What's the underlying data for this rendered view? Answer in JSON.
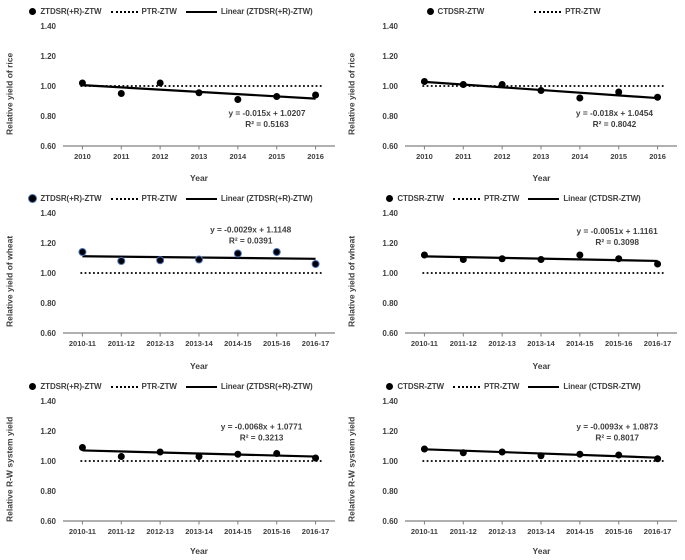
{
  "colors": {
    "text": "#3f3f3f",
    "axis_line": "#808080",
    "series_black": "#000000",
    "wheat_marker_edge_blue": "#4472c4"
  },
  "chart_data": [
    {
      "id": "rice-ztdsr",
      "type": "scatter",
      "grid_position": "top-left",
      "xlabel": "Year",
      "ylabel": "Relative yield of rice",
      "ylim": [
        0.6,
        1.4
      ],
      "yticks": [
        "1.40",
        "1.20",
        "1.00",
        "0.80",
        "0.60"
      ],
      "categories": [
        "2010",
        "2011",
        "2012",
        "2013",
        "2014",
        "2015",
        "2016"
      ],
      "series": [
        {
          "name": "ZTDSR(+R)-ZTW",
          "kind": "points",
          "color": "#000000",
          "values": [
            1.02,
            0.95,
            1.02,
            0.955,
            0.91,
            0.93,
            0.94
          ]
        },
        {
          "name": "PTR-ZTW",
          "kind": "reference_line",
          "color": "#000000",
          "value": 1.0
        },
        {
          "name": "Linear (ZTDSR(+R)-ZTW)",
          "kind": "trendline",
          "color": "#000000",
          "slope": -0.015,
          "intercept": 1.0207
        }
      ],
      "equation": "y = -0.015x + 1.0207",
      "r_squared": "R² = 0.5163",
      "legend_position": "top",
      "annotation_anchor": {
        "x_frac": 0.75,
        "y_value": 0.8
      }
    },
    {
      "id": "rice-ctdsr",
      "type": "scatter",
      "grid_position": "top-right",
      "xlabel": "Year",
      "ylabel": "Relative yield of rice",
      "ylim": [
        0.6,
        1.4
      ],
      "yticks": [
        "1.40",
        "1.20",
        "1.00",
        "0.80",
        "0.60"
      ],
      "categories": [
        "2010",
        "2011",
        "2012",
        "2013",
        "2014",
        "2015",
        "2016"
      ],
      "series": [
        {
          "name": "CTDSR-ZTW",
          "kind": "points",
          "color": "#000000",
          "values": [
            1.03,
            1.01,
            1.01,
            0.97,
            0.92,
            0.96,
            0.925
          ]
        },
        {
          "name": "PTR-ZTW",
          "kind": "reference_line",
          "color": "#000000",
          "value": 1.0
        },
        {
          "name": "Linear (CTDSR-ZTW)",
          "kind": "trendline",
          "color": "#000000",
          "slope": -0.018,
          "intercept": 1.0454,
          "in_legend": false
        }
      ],
      "equation": "y = -0.018x + 1.0454",
      "r_squared": "R² = 0.8042",
      "legend_position": "top",
      "annotation_anchor": {
        "x_frac": 0.77,
        "y_value": 0.8
      }
    },
    {
      "id": "wheat-ztdsr",
      "type": "scatter",
      "grid_position": "middle-left",
      "xlabel": "Year",
      "ylabel": "Relative yield of wheat",
      "ylim": [
        0.6,
        1.4
      ],
      "yticks": [
        "1.40",
        "1.20",
        "1.00",
        "0.80",
        "0.60"
      ],
      "categories": [
        "2010-11",
        "2011-12",
        "2012-13",
        "2013-14",
        "2014-15",
        "2015-16",
        "2016-17"
      ],
      "series": [
        {
          "name": "ZTDSR(+R)-ZTW",
          "kind": "points",
          "color": "#000000",
          "edge": "#4472c4",
          "values": [
            1.14,
            1.08,
            1.085,
            1.09,
            1.13,
            1.14,
            1.06
          ]
        },
        {
          "name": "PTR-ZTW",
          "kind": "reference_line",
          "color": "#000000",
          "value": 1.0
        },
        {
          "name": "Linear (ZTDSR(+R)-ZTW)",
          "kind": "trendline",
          "color": "#000000",
          "slope": -0.0029,
          "intercept": 1.1148
        }
      ],
      "equation": "y = -0.0029x + 1.1148",
      "r_squared": "R² = 0.0391",
      "legend_position": "top",
      "annotation_anchor": {
        "x_frac": 0.69,
        "y_value": 1.27
      }
    },
    {
      "id": "wheat-ctdsr",
      "type": "scatter",
      "grid_position": "middle-right",
      "xlabel": "Year",
      "ylabel": "Relative yield of wheat",
      "ylim": [
        0.6,
        1.4
      ],
      "yticks": [
        "1.40",
        "1.20",
        "1.00",
        "0.80",
        "0.60"
      ],
      "categories": [
        "2010-11",
        "2011-12",
        "2012-13",
        "2013-14",
        "2014-15",
        "2015-16",
        "2016-17"
      ],
      "series": [
        {
          "name": "CTDSR-ZTW",
          "kind": "points",
          "color": "#000000",
          "values": [
            1.12,
            1.09,
            1.095,
            1.09,
            1.12,
            1.095,
            1.06
          ]
        },
        {
          "name": "PTR-ZTW",
          "kind": "reference_line",
          "color": "#000000",
          "value": 1.0
        },
        {
          "name": "Linear (CTDSR-ZTW)",
          "kind": "trendline",
          "color": "#000000",
          "slope": -0.0051,
          "intercept": 1.1161
        }
      ],
      "equation": "y = -0.0051x + 1.1161",
      "r_squared": "R² = 0.3098",
      "legend_position": "top",
      "annotation_anchor": {
        "x_frac": 0.78,
        "y_value": 1.26
      }
    },
    {
      "id": "system-ztdsr",
      "type": "scatter",
      "grid_position": "bottom-left",
      "xlabel": "Year",
      "ylabel": "Relative R-W system yield",
      "ylim": [
        0.6,
        1.4
      ],
      "yticks": [
        "1.40",
        "1.20",
        "1.00",
        "0.80",
        "0.60"
      ],
      "categories": [
        "2010-11",
        "2011-12",
        "2012-13",
        "2013-14",
        "2014-15",
        "2015-16",
        "2016-17"
      ],
      "series": [
        {
          "name": "ZTDSR(+R)-ZTW",
          "kind": "points",
          "color": "#000000",
          "values": [
            1.09,
            1.03,
            1.06,
            1.03,
            1.045,
            1.05,
            1.02
          ]
        },
        {
          "name": "PTR-ZTW",
          "kind": "reference_line",
          "color": "#000000",
          "value": 1.0
        },
        {
          "name": "Linear (ZTDSR(+R)-ZTW)",
          "kind": "trendline",
          "color": "#000000",
          "slope": -0.0068,
          "intercept": 1.0771
        }
      ],
      "equation": "y = -0.0068x + 1.0771",
      "r_squared": "R² = 0.3213",
      "legend_position": "top",
      "annotation_anchor": {
        "x_frac": 0.73,
        "y_value": 1.21
      }
    },
    {
      "id": "system-ctdsr",
      "type": "scatter",
      "grid_position": "bottom-right",
      "xlabel": "Year",
      "ylabel": "Relative R-W system yield",
      "ylim": [
        0.6,
        1.4
      ],
      "yticks": [
        "1.40",
        "1.20",
        "1.00",
        "0.80",
        "0.60"
      ],
      "categories": [
        "2010-11",
        "2011-12",
        "2012-13",
        "2013-14",
        "2014-15",
        "2015-16",
        "2016-17"
      ],
      "series": [
        {
          "name": "CTDSR-ZTW",
          "kind": "points",
          "color": "#000000",
          "values": [
            1.08,
            1.055,
            1.06,
            1.035,
            1.045,
            1.04,
            1.015
          ]
        },
        {
          "name": "PTR-ZTW",
          "kind": "reference_line",
          "color": "#000000",
          "value": 1.0
        },
        {
          "name": "Linear (CTDSR-ZTW)",
          "kind": "trendline",
          "color": "#000000",
          "slope": -0.0093,
          "intercept": 1.0873
        }
      ],
      "equation": "y = -0.0093x + 1.0873",
      "r_squared": "R² = 0.8017",
      "legend_position": "top",
      "annotation_anchor": {
        "x_frac": 0.78,
        "y_value": 1.21
      }
    }
  ]
}
